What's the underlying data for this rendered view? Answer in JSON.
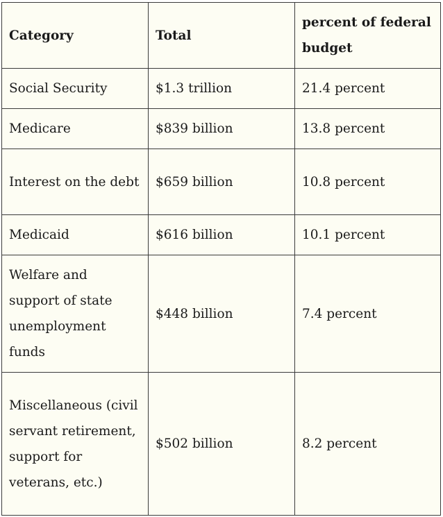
{
  "table": {
    "headers": [
      "Category",
      "Total",
      "percent of federal budget"
    ],
    "rows": [
      [
        "Social Security",
        "$1.3 trillion",
        "21.4 percent"
      ],
      [
        "Medicare",
        "$839 billion",
        "13.8 percent"
      ],
      [
        "Interest on the debt",
        "$659 billion",
        "10.8 percent"
      ],
      [
        "Medicaid",
        "$616 billion",
        "10.1 percent"
      ],
      [
        "Welfare and support of state unemployment funds",
        "$448 billion",
        "7.4 percent"
      ],
      [
        "Miscellaneous (civil servant retirement, support for veterans, etc.)",
        "$502 billion",
        "8.2 percent"
      ]
    ]
  },
  "colors": {
    "cell_background": "#fdfdf3",
    "border": "#3a3a3a",
    "text": "#1a1a1a"
  }
}
